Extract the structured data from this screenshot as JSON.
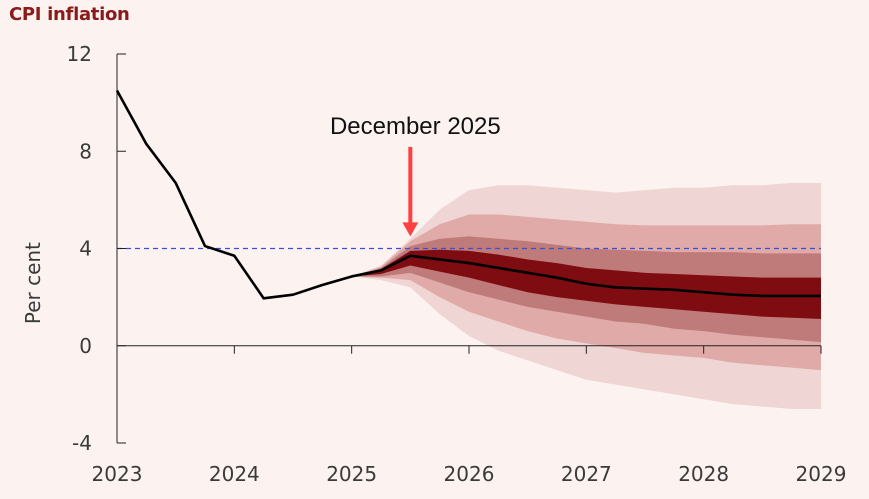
{
  "chart_data": {
    "type": "area",
    "title": "CPI inflation",
    "ylabel": "Per cent",
    "xlabel": "",
    "xlim": [
      2023,
      2029
    ],
    "ylim": [
      -4,
      12
    ],
    "y_ticks": [
      -4,
      0,
      4,
      8,
      12
    ],
    "x_ticks": [
      2023,
      2024,
      2025,
      2026,
      2027,
      2028,
      2029
    ],
    "x_tick_labels": [
      "2023",
      "2024",
      "2025",
      "2026",
      "2027",
      "2028",
      "2029"
    ],
    "target_line": {
      "value": 4,
      "style": "dashed",
      "color": "#3b4fd6"
    },
    "annotation": {
      "text": "December 2025",
      "x": 2025.5,
      "arrow_tip_y": 4.5
    },
    "colors": {
      "background": "#fcf3f1",
      "title": "#8b1a1a",
      "line": "#000000",
      "band_outer": "#efd5d3",
      "band_middle": "#dfaaa8",
      "band_inner": "#bf7a7a",
      "band_core": "#7e0c10",
      "arrow": "#ff4040"
    },
    "series": [
      {
        "type": "line",
        "x": [
          2023.0,
          2023.25,
          2023.5,
          2023.75,
          2024.0,
          2024.25,
          2024.5,
          2024.75,
          2025.0,
          2025.25,
          2025.5,
          2025.75,
          2026.0,
          2026.25,
          2026.5,
          2026.75,
          2027.0,
          2027.25,
          2027.5,
          2027.75,
          2028.0,
          2028.25,
          2028.5,
          2028.75,
          2029.0
        ],
        "y": [
          10.5,
          8.3,
          6.7,
          4.1,
          3.7,
          1.95,
          2.1,
          2.5,
          2.85,
          3.1,
          3.7,
          3.55,
          3.4,
          3.2,
          3.0,
          2.8,
          2.55,
          2.4,
          2.35,
          2.3,
          2.2,
          2.1,
          2.05,
          2.05,
          2.05
        ]
      }
    ],
    "fan": {
      "x": [
        2025.0,
        2025.25,
        2025.5,
        2025.75,
        2026.0,
        2026.25,
        2026.5,
        2026.75,
        2027.0,
        2027.25,
        2027.5,
        2027.75,
        2028.0,
        2028.25,
        2028.5,
        2028.75,
        2029.0
      ],
      "bands": [
        {
          "name": "outer",
          "upper": [
            2.85,
            3.3,
            4.4,
            5.6,
            6.4,
            6.6,
            6.6,
            6.5,
            6.4,
            6.3,
            6.4,
            6.5,
            6.5,
            6.6,
            6.6,
            6.7,
            6.7
          ],
          "lower": [
            2.85,
            2.7,
            2.4,
            1.3,
            0.4,
            -0.2,
            -0.6,
            -1.0,
            -1.4,
            -1.6,
            -1.8,
            -2.0,
            -2.2,
            -2.4,
            -2.5,
            -2.6,
            -2.6
          ]
        },
        {
          "name": "middle",
          "upper": [
            2.85,
            3.25,
            4.3,
            5.0,
            5.4,
            5.4,
            5.3,
            5.2,
            5.1,
            5.0,
            4.95,
            4.95,
            4.95,
            4.95,
            4.95,
            5.0,
            5.0
          ],
          "lower": [
            2.85,
            2.8,
            2.7,
            2.0,
            1.4,
            1.0,
            0.6,
            0.3,
            0.1,
            -0.1,
            -0.3,
            -0.4,
            -0.5,
            -0.7,
            -0.8,
            -0.9,
            -1.0
          ]
        },
        {
          "name": "inner",
          "upper": [
            2.85,
            3.2,
            4.1,
            4.4,
            4.5,
            4.4,
            4.3,
            4.15,
            4.0,
            3.95,
            3.9,
            3.85,
            3.85,
            3.85,
            3.8,
            3.8,
            3.8
          ],
          "lower": [
            2.85,
            2.85,
            3.0,
            2.6,
            2.2,
            1.9,
            1.6,
            1.4,
            1.2,
            1.0,
            0.9,
            0.7,
            0.6,
            0.45,
            0.35,
            0.25,
            0.15
          ]
        },
        {
          "name": "core",
          "upper": [
            2.85,
            3.15,
            3.9,
            3.95,
            3.9,
            3.75,
            3.55,
            3.4,
            3.2,
            3.1,
            3.0,
            2.95,
            2.9,
            2.85,
            2.8,
            2.8,
            2.8
          ],
          "lower": [
            2.85,
            2.95,
            3.3,
            3.05,
            2.8,
            2.5,
            2.2,
            2.0,
            1.85,
            1.7,
            1.6,
            1.5,
            1.4,
            1.3,
            1.2,
            1.15,
            1.1
          ]
        }
      ]
    }
  }
}
